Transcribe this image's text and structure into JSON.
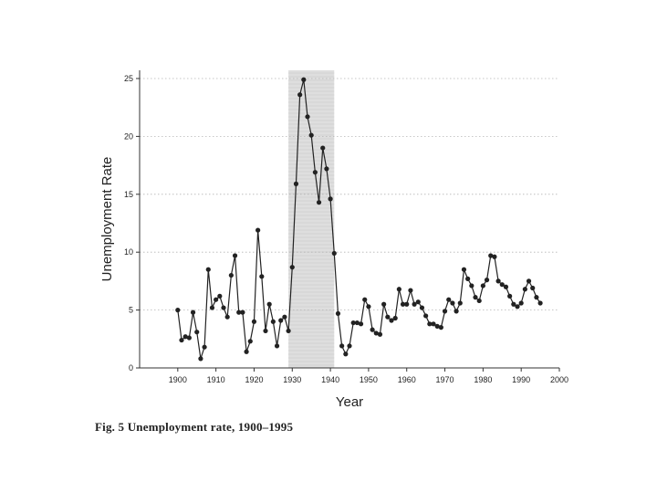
{
  "caption": "Fig. 5   Unemployment rate, 1900–1995",
  "chart_data": {
    "type": "line",
    "title": "",
    "xlabel": "Year",
    "ylabel": "Unemployment Rate",
    "xlim": [
      1890,
      2000
    ],
    "ylim": [
      0,
      25
    ],
    "xticks": [
      "1900",
      "1910",
      "1920",
      "1930",
      "1940",
      "1950",
      "1960",
      "1970",
      "1980",
      "1990",
      "2000"
    ],
    "yticks": [
      "0",
      "5",
      "10",
      "15",
      "20",
      "25"
    ],
    "grid": true,
    "shaded_region": [
      1929,
      1941
    ],
    "series": [
      {
        "markers": true,
        "points": [
          [
            1900,
            5.0
          ],
          [
            1901,
            2.4
          ],
          [
            1902,
            2.7
          ],
          [
            1903,
            2.6
          ],
          [
            1904,
            4.8
          ],
          [
            1905,
            3.1
          ],
          [
            1906,
            0.8
          ],
          [
            1907,
            1.8
          ],
          [
            1908,
            8.5
          ],
          [
            1909,
            5.2
          ],
          [
            1910,
            5.9
          ],
          [
            1911,
            6.2
          ],
          [
            1912,
            5.2
          ],
          [
            1913,
            4.4
          ],
          [
            1914,
            8.0
          ],
          [
            1915,
            9.7
          ],
          [
            1916,
            4.8
          ],
          [
            1917,
            4.8
          ],
          [
            1918,
            1.4
          ],
          [
            1919,
            2.3
          ],
          [
            1920,
            4.0
          ],
          [
            1921,
            11.9
          ],
          [
            1922,
            7.9
          ],
          [
            1923,
            3.2
          ],
          [
            1924,
            5.5
          ],
          [
            1925,
            4.0
          ],
          [
            1926,
            1.9
          ],
          [
            1927,
            4.1
          ],
          [
            1928,
            4.4
          ],
          [
            1929,
            3.2
          ],
          [
            1930,
            8.7
          ],
          [
            1931,
            15.9
          ],
          [
            1932,
            23.6
          ],
          [
            1933,
            24.9
          ],
          [
            1934,
            21.7
          ],
          [
            1935,
            20.1
          ],
          [
            1936,
            16.9
          ],
          [
            1937,
            14.3
          ],
          [
            1938,
            19.0
          ],
          [
            1939,
            17.2
          ],
          [
            1940,
            14.6
          ],
          [
            1941,
            9.9
          ],
          [
            1942,
            4.7
          ],
          [
            1943,
            1.9
          ],
          [
            1944,
            1.2
          ],
          [
            1945,
            1.9
          ],
          [
            1946,
            3.9
          ],
          [
            1947,
            3.9
          ],
          [
            1948,
            3.8
          ],
          [
            1949,
            5.9
          ],
          [
            1950,
            5.3
          ],
          [
            1951,
            3.3
          ],
          [
            1952,
            3.0
          ],
          [
            1953,
            2.9
          ],
          [
            1954,
            5.5
          ],
          [
            1955,
            4.4
          ],
          [
            1956,
            4.1
          ],
          [
            1957,
            4.3
          ],
          [
            1958,
            6.8
          ],
          [
            1959,
            5.5
          ],
          [
            1960,
            5.5
          ],
          [
            1961,
            6.7
          ],
          [
            1962,
            5.5
          ],
          [
            1963,
            5.7
          ],
          [
            1964,
            5.2
          ],
          [
            1965,
            4.5
          ],
          [
            1966,
            3.8
          ],
          [
            1967,
            3.8
          ],
          [
            1968,
            3.6
          ],
          [
            1969,
            3.5
          ],
          [
            1970,
            4.9
          ],
          [
            1971,
            5.9
          ],
          [
            1972,
            5.6
          ],
          [
            1973,
            4.9
          ],
          [
            1974,
            5.6
          ],
          [
            1975,
            8.5
          ],
          [
            1976,
            7.7
          ],
          [
            1977,
            7.1
          ],
          [
            1978,
            6.1
          ],
          [
            1979,
            5.8
          ],
          [
            1980,
            7.1
          ],
          [
            1981,
            7.6
          ],
          [
            1982,
            9.7
          ],
          [
            1983,
            9.6
          ],
          [
            1984,
            7.5
          ],
          [
            1985,
            7.2
          ],
          [
            1986,
            7.0
          ],
          [
            1987,
            6.2
          ],
          [
            1988,
            5.5
          ],
          [
            1989,
            5.3
          ],
          [
            1990,
            5.6
          ],
          [
            1991,
            6.8
          ],
          [
            1992,
            7.5
          ],
          [
            1993,
            6.9
          ],
          [
            1994,
            6.1
          ],
          [
            1995,
            5.6
          ]
        ]
      }
    ]
  }
}
